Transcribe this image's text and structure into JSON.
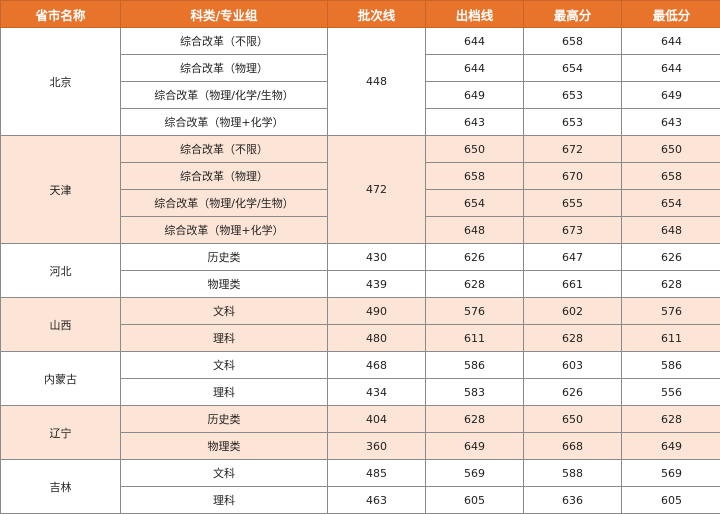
{
  "colors": {
    "header": "#E8732A",
    "alt_row": "#FCE4D6"
  },
  "headers": [
    "省市名称",
    "科类/专业组",
    "批次线",
    "出档线",
    "最高分",
    "最低分"
  ],
  "provinces": [
    {
      "name": "北京",
      "batch_shared": "448",
      "rows": [
        {
          "category": "综合改革（不限）",
          "cutoff": "644",
          "max": "658",
          "min": "644"
        },
        {
          "category": "综合改革（物理）",
          "cutoff": "644",
          "max": "654",
          "min": "644"
        },
        {
          "category": "综合改革（物理/化学/生物）",
          "cutoff": "649",
          "max": "653",
          "min": "649"
        },
        {
          "category": "综合改革（物理+化学）",
          "cutoff": "643",
          "max": "653",
          "min": "643"
        }
      ]
    },
    {
      "name": "天津",
      "batch_shared": "472",
      "rows": [
        {
          "category": "综合改革（不限）",
          "cutoff": "650",
          "max": "672",
          "min": "650"
        },
        {
          "category": "综合改革（物理）",
          "cutoff": "658",
          "max": "670",
          "min": "658"
        },
        {
          "category": "综合改革（物理/化学/生物）",
          "cutoff": "654",
          "max": "655",
          "min": "654"
        },
        {
          "category": "综合改革（物理+化学）",
          "cutoff": "648",
          "max": "673",
          "min": "648"
        }
      ]
    },
    {
      "name": "河北",
      "rows": [
        {
          "category": "历史类",
          "batch": "430",
          "cutoff": "626",
          "max": "647",
          "min": "626"
        },
        {
          "category": "物理类",
          "batch": "439",
          "cutoff": "628",
          "max": "661",
          "min": "628"
        }
      ]
    },
    {
      "name": "山西",
      "rows": [
        {
          "category": "文科",
          "batch": "490",
          "cutoff": "576",
          "max": "602",
          "min": "576"
        },
        {
          "category": "理科",
          "batch": "480",
          "cutoff": "611",
          "max": "628",
          "min": "611"
        }
      ]
    },
    {
      "name": "内蒙古",
      "rows": [
        {
          "category": "文科",
          "batch": "468",
          "cutoff": "586",
          "max": "603",
          "min": "586"
        },
        {
          "category": "理科",
          "batch": "434",
          "cutoff": "583",
          "max": "626",
          "min": "556"
        }
      ]
    },
    {
      "name": "辽宁",
      "rows": [
        {
          "category": "历史类",
          "batch": "404",
          "cutoff": "628",
          "max": "650",
          "min": "628"
        },
        {
          "category": "物理类",
          "batch": "360",
          "cutoff": "649",
          "max": "668",
          "min": "649"
        }
      ]
    },
    {
      "name": "吉林",
      "rows": [
        {
          "category": "文科",
          "batch": "485",
          "cutoff": "569",
          "max": "588",
          "min": "569"
        },
        {
          "category": "理科",
          "batch": "463",
          "cutoff": "605",
          "max": "636",
          "min": "605"
        }
      ]
    }
  ]
}
